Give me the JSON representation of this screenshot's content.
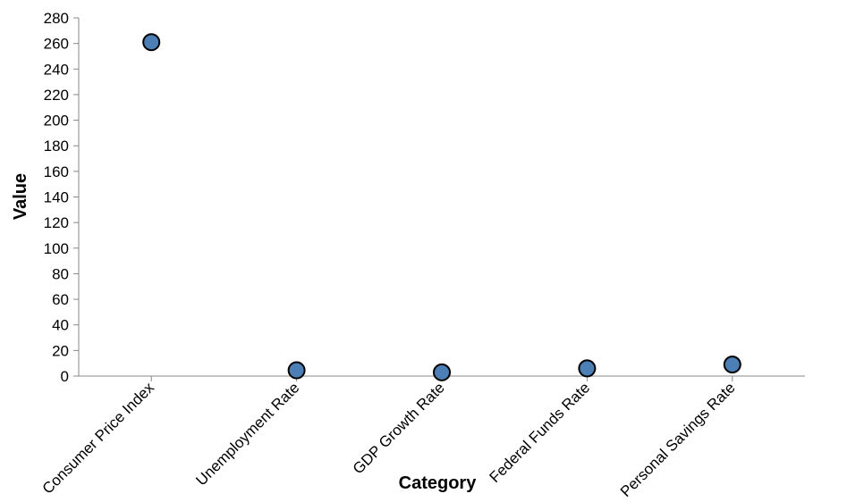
{
  "chart_data": {
    "type": "scatter",
    "categories": [
      "Consumer Price Index",
      "Unemployment Rate",
      "GDP Growth Rate",
      "Federal Funds Rate",
      "Personal Savings Rate"
    ],
    "values": [
      261,
      4.5,
      2.9,
      6.0,
      9.0
    ],
    "xlabel": "Category",
    "ylabel": "Value",
    "ylim": [
      0,
      280
    ],
    "yticks": [
      0,
      20,
      40,
      60,
      80,
      100,
      120,
      140,
      160,
      180,
      200,
      220,
      240,
      260,
      280
    ],
    "grid": false,
    "point_color": "#4c7fb5"
  }
}
